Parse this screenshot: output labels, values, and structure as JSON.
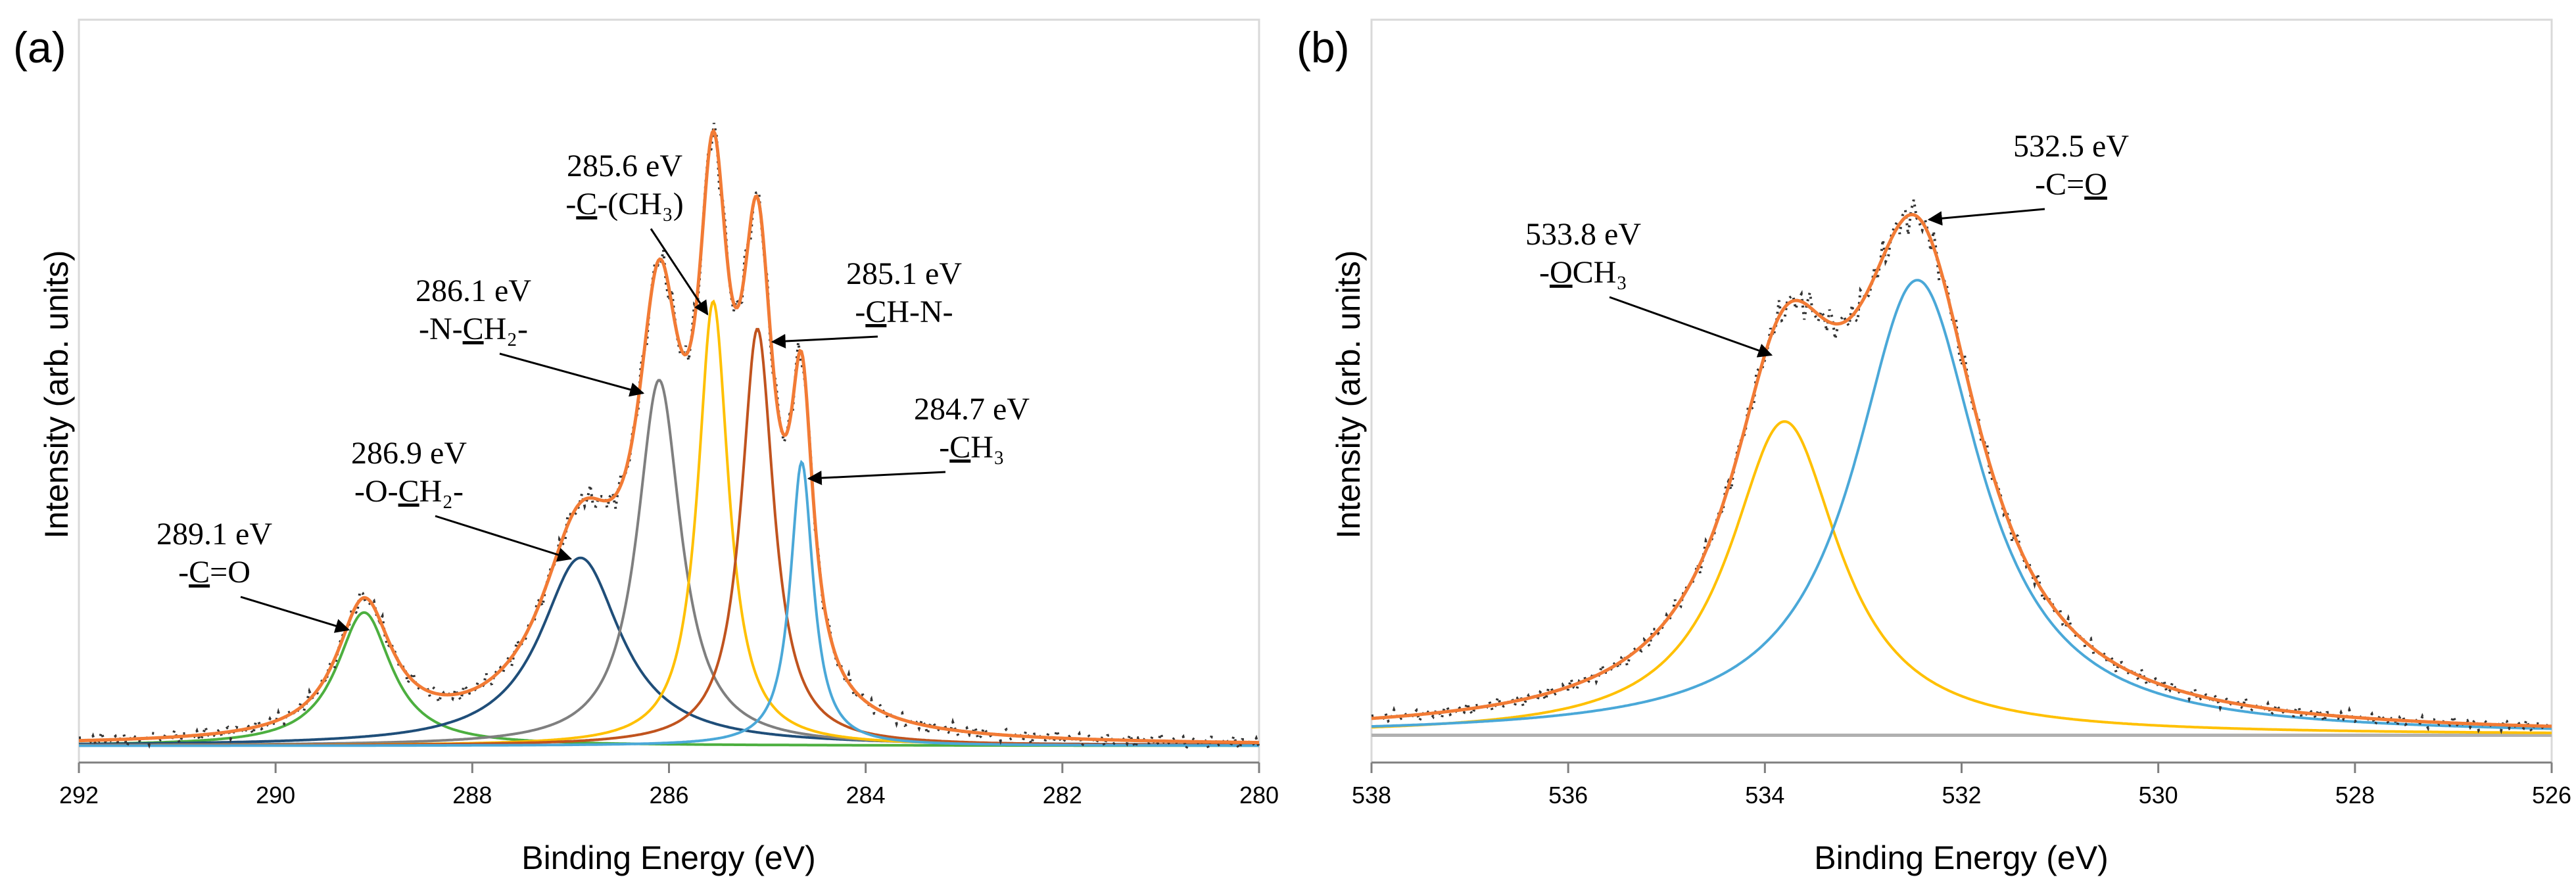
{
  "chart_data": [
    {
      "type": "line",
      "panel_label": "(a)",
      "xlabel": "Binding Energy (eV)",
      "ylabel": "Intensity (arb. units)",
      "xlim": [
        292,
        280
      ],
      "ylim": [
        0,
        1
      ],
      "x_ticks": [
        "292",
        "290",
        "288",
        "286",
        "284",
        "282",
        "280"
      ],
      "x_tick_values": [
        292,
        290,
        288,
        286,
        284,
        282,
        280
      ],
      "grid": false,
      "baseline": 0.01,
      "components": [
        {
          "name": "C=O",
          "center": 289.1,
          "amplitude": 0.195,
          "width": 0.34,
          "color": "#4caf3f"
        },
        {
          "name": "O-CH2",
          "center": 286.9,
          "amplitude": 0.275,
          "width": 0.5,
          "color": "#1f4e79"
        },
        {
          "name": "N-CH2",
          "center": 286.1,
          "amplitude": 0.535,
          "width": 0.27,
          "color": "#7f7f7f"
        },
        {
          "name": "C-(CH3)",
          "center": 285.55,
          "amplitude": 0.65,
          "width": 0.19,
          "color": "#ffc000"
        },
        {
          "name": "CH-N",
          "center": 285.1,
          "amplitude": 0.61,
          "width": 0.2,
          "color": "#c0531e"
        },
        {
          "name": "CH3",
          "center": 284.65,
          "amplitude": 0.415,
          "width": 0.14,
          "color": "#4aa8d8"
        }
      ],
      "envelope_color": "#f27b35",
      "measured_color": "#333333",
      "annotations": [
        {
          "line1": "289.1 eV",
          "pre": "-",
          "u": "C",
          "post": "=O",
          "peak": 289.1
        },
        {
          "line1": "286.9 eV",
          "pre": "-O-",
          "u": "C",
          "post": "H₂-",
          "peak": 286.9
        },
        {
          "line1": "286.1 eV",
          "pre": "-N-",
          "u": "C",
          "post": "H₂-",
          "peak": 286.1
        },
        {
          "line1": "285.6 eV",
          "pre": "-",
          "u": "C",
          "post": "-(CH₃)",
          "peak": 285.6
        },
        {
          "line1": "285.1 eV",
          "pre": "-",
          "u": "C",
          "post": "H-N-",
          "peak": 285.1
        },
        {
          "line1": "284.7 eV",
          "pre": "-",
          "u": "C",
          "post": "H₃",
          "peak": 284.7
        }
      ]
    },
    {
      "type": "line",
      "panel_label": "(b)",
      "xlabel": "Binding Energy (eV)",
      "ylabel": "Intensity (arb. units)",
      "xlim": [
        538,
        526
      ],
      "ylim": [
        0,
        1
      ],
      "x_ticks": [
        "538",
        "536",
        "534",
        "532",
        "530",
        "528",
        "526"
      ],
      "x_tick_values": [
        538,
        536,
        534,
        532,
        530,
        528,
        526
      ],
      "grid": false,
      "baseline": 0.025,
      "components": [
        {
          "name": "OCH3",
          "center": 533.8,
          "amplitude": 0.555,
          "width": 0.68,
          "color": "#ffc000"
        },
        {
          "name": "C=O",
          "center": 532.45,
          "amplitude": 0.805,
          "width": 0.78,
          "color": "#4aa8d8"
        }
      ],
      "envelope_color": "#f27b35",
      "measured_color": "#333333",
      "baseline_color": "#b0b0b0",
      "annotations": [
        {
          "line1": "533.8 eV",
          "pre": "-",
          "u": "O",
          "post": "CH₃",
          "peak": 533.8
        },
        {
          "line1": "532.5 eV",
          "pre": "-C=",
          "u": "O",
          "post": "",
          "peak": 532.45
        }
      ]
    }
  ]
}
